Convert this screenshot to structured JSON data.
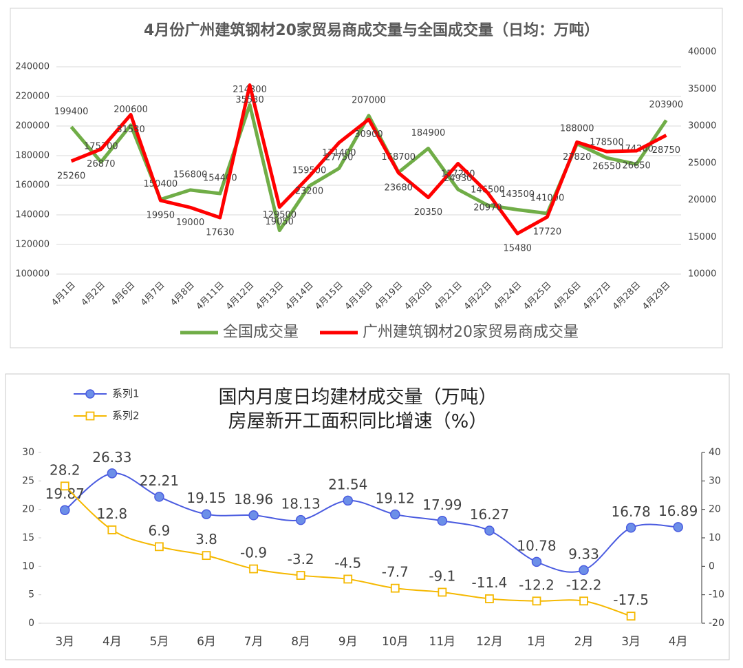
{
  "chart_data": [
    {
      "type": "line",
      "title": "4月份广州建筑钢材20家贸易商成交量与全国成交量（日均：万吨）",
      "categories": [
        "4月1日",
        "4月2日",
        "4月6日",
        "4月7日",
        "4月8日",
        "4月11日",
        "4月12日",
        "4月13日",
        "4月14日",
        "4月15日",
        "4月18日",
        "4月19日",
        "4月20日",
        "4月21日",
        "4月22日",
        "4月24日",
        "4月25日",
        "4月26日",
        "4月27日",
        "4月28日",
        "4月29日"
      ],
      "series": [
        {
          "name": "全国成交量",
          "color": "#70ad47",
          "axis": "y",
          "marker": "none",
          "label_side": "above",
          "values": [
            199400,
            175700,
            200600,
            150400,
            156800,
            154400,
            214300,
            129500,
            159500,
            171400,
            207000,
            168700,
            184900,
            157200,
            146500,
            143500,
            141000,
            188000,
            178500,
            174200,
            203900
          ]
        },
        {
          "name": "广州建筑钢材20家贸易商成交量",
          "color": "#ff0000",
          "axis": "y2",
          "marker": "none",
          "label_side": "below",
          "values": [
            25260,
            26870,
            31530,
            19950,
            19000,
            17630,
            35530,
            19050,
            23200,
            27750,
            30900,
            23680,
            20350,
            24930,
            20970,
            15480,
            17720,
            27820,
            26550,
            26650,
            28750
          ]
        }
      ],
      "ylim": [
        100000,
        250000
      ],
      "yticks": [
        100000,
        120000,
        140000,
        160000,
        180000,
        200000,
        220000,
        240000
      ],
      "y2lim": [
        10000,
        40000
      ],
      "y2ticks": [
        10000,
        15000,
        20000,
        25000,
        30000,
        35000,
        40000
      ],
      "grid": true,
      "smooth": false,
      "legend": "bottom"
    },
    {
      "type": "line",
      "title": "国内月度日均建材成交量（万吨）",
      "subtitle": "房屋新开工面积同比增速（%）",
      "categories": [
        "3月",
        "4月",
        "5月",
        "6月",
        "7月",
        "8月",
        "9月",
        "10月",
        "11月",
        "12月",
        "1月",
        "2月",
        "3月",
        "4月"
      ],
      "series": [
        {
          "name": "系列1",
          "color": "#4a5be0",
          "axis": "y",
          "marker": "circle",
          "label_side": "above",
          "values": [
            19.87,
            26.33,
            22.21,
            19.15,
            18.96,
            18.13,
            21.54,
            19.12,
            17.99,
            16.27,
            10.78,
            9.33,
            16.78,
            16.89
          ]
        },
        {
          "name": "系列2",
          "color": "#f5b800",
          "axis": "y2",
          "marker": "square",
          "label_side": "above",
          "values": [
            28.2,
            12.8,
            6.9,
            3.8,
            -0.9,
            -3.2,
            -4.5,
            -7.7,
            -9.1,
            -11.4,
            -12.2,
            -12.2,
            -17.5,
            null
          ]
        }
      ],
      "ylim": [
        0,
        30
      ],
      "yticks": [
        0,
        5,
        10,
        15,
        20,
        25,
        30
      ],
      "y2lim": [
        -20,
        40
      ],
      "y2ticks": [
        -20,
        -10,
        0,
        10,
        20,
        30,
        40
      ],
      "grid": false,
      "smooth": true,
      "legend": "top-left"
    }
  ]
}
